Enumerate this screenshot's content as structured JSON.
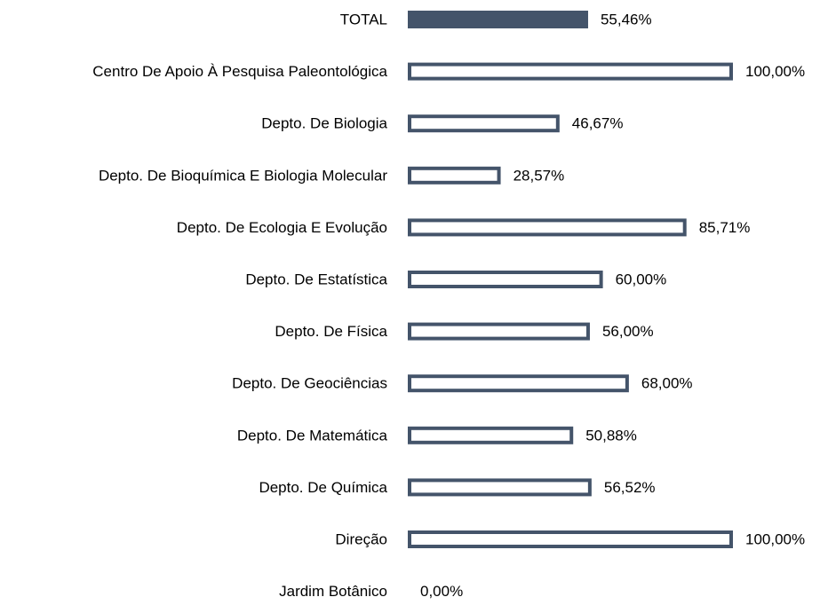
{
  "chart_data": {
    "type": "bar",
    "orientation": "horizontal",
    "categories": [
      "TOTAL",
      "Centro De Apoio À Pesquisa Paleontológica",
      "Depto. De Biologia",
      "Depto. De Bioquímica E Biologia Molecular",
      "Depto. De Ecologia E Evolução",
      "Depto. De Estatística",
      "Depto. De Física",
      "Depto. De Geociências",
      "Depto. De Matemática",
      "Depto. De Química",
      "Direção",
      "Jardim Botânico"
    ],
    "values": [
      55.46,
      100,
      46.67,
      28.57,
      85.71,
      60,
      56,
      68,
      50.88,
      56.52,
      100,
      0
    ],
    "value_labels": [
      "55,46%",
      "100,00%",
      "46,67%",
      "28,57%",
      "85,71%",
      "60,00%",
      "56,00%",
      "68,00%",
      "50,88%",
      "56,52%",
      "100,00%",
      "0,00%"
    ],
    "color": "#44546a",
    "fills": [
      "#44546a",
      "#ffffff",
      "#ffffff",
      "#ffffff",
      "#ffffff",
      "#ffffff",
      "#ffffff",
      "#ffffff",
      "#ffffff",
      "#ffffff",
      "#ffffff",
      "#ffffff"
    ],
    "xlim": [
      0,
      100
    ]
  }
}
